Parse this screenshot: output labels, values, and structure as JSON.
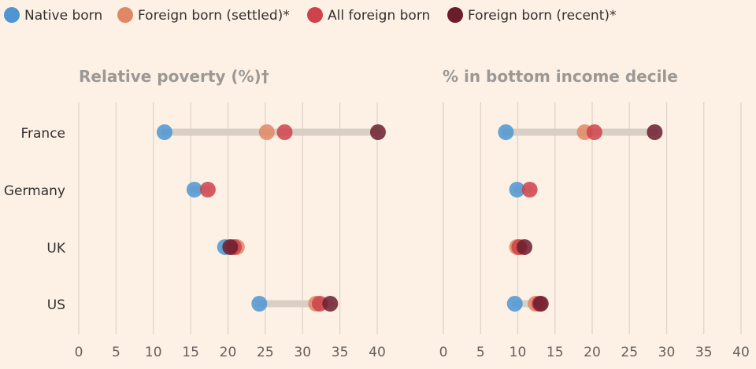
{
  "chart_data": {
    "type": "dot",
    "legend": [
      {
        "key": "native",
        "label": "Native born",
        "color": "#4e95d2"
      },
      {
        "key": "settled",
        "label": "Foreign born (settled)*",
        "color": "#e08766"
      },
      {
        "key": "all",
        "label": "All foreign born",
        "color": "#cd424b"
      },
      {
        "key": "recent",
        "label": "Foreign born (recent)*",
        "color": "#6b1d2e"
      }
    ],
    "categories": [
      "France",
      "Germany",
      "UK",
      "US"
    ],
    "xlim": [
      0,
      40
    ],
    "ticks": [
      0,
      5,
      10,
      15,
      20,
      25,
      30,
      35,
      40
    ],
    "panels": [
      {
        "title": "Relative poverty (%)†",
        "series": {
          "native": [
            11.5,
            15.5,
            19.6,
            24.2
          ],
          "settled": [
            25.2,
            null,
            21.2,
            31.8
          ],
          "all": [
            27.6,
            17.3,
            20.8,
            32.3
          ],
          "recent": [
            40.1,
            null,
            20.3,
            33.7
          ]
        }
      },
      {
        "title": "% in bottom income decile",
        "series": {
          "native": [
            8.4,
            9.9,
            null,
            9.6
          ],
          "settled": [
            19.0,
            null,
            9.9,
            12.4
          ],
          "all": [
            20.3,
            11.6,
            10.2,
            12.9
          ],
          "recent": [
            28.4,
            null,
            10.9,
            13.1
          ]
        }
      }
    ]
  }
}
